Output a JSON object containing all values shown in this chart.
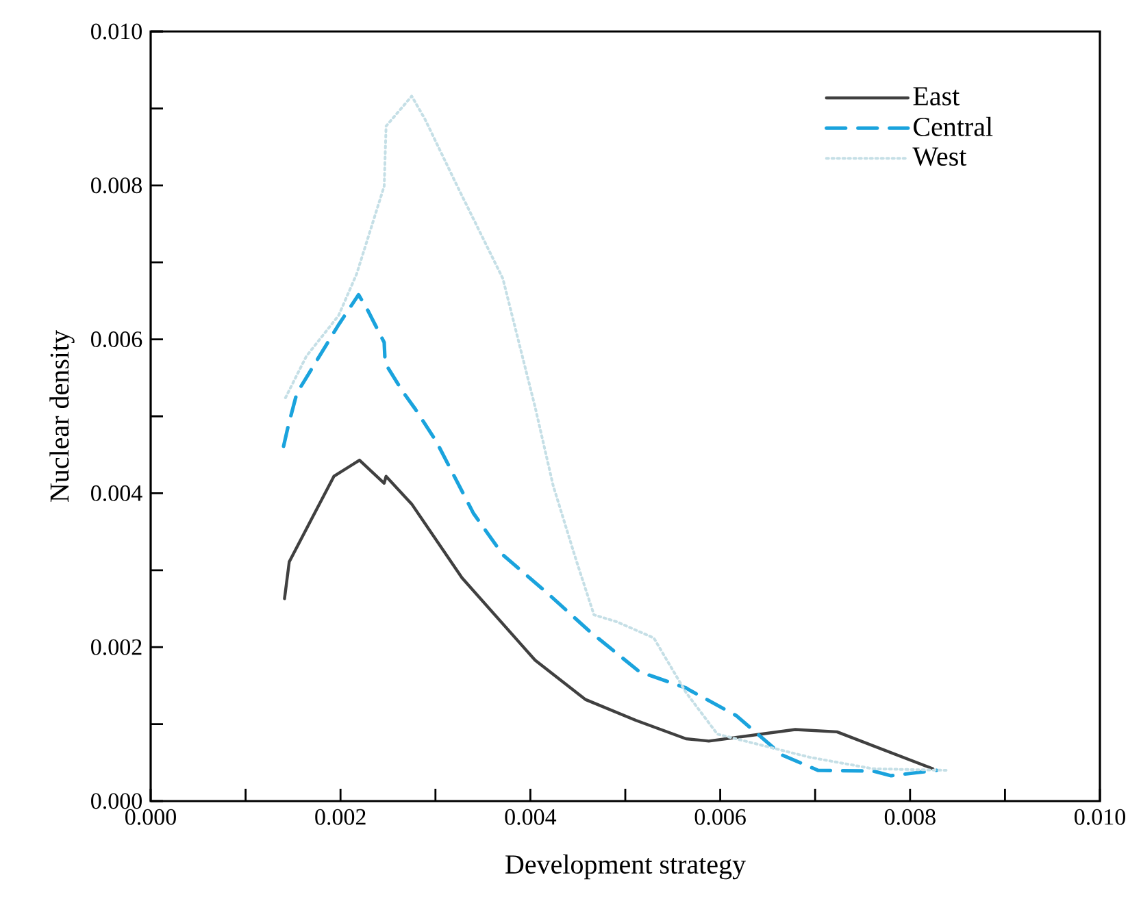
{
  "chart_data": {
    "type": "line",
    "xlabel": "Development strategy",
    "ylabel": "Nuclear density",
    "xlim": [
      0,
      0.01
    ],
    "ylim": [
      0,
      0.01
    ],
    "xticks": [
      {
        "value": 0,
        "label": "0.000"
      },
      {
        "value": 0.001,
        "label": null
      },
      0.002,
      {
        "value": 0.003,
        "label": null
      },
      0.004,
      {
        "value": 0.005,
        "label": null
      },
      0.006,
      {
        "value": 0.007,
        "label": null
      },
      0.008,
      {
        "value": 0.009,
        "label": null
      },
      {
        "value": 0.01,
        "label": "0.010"
      }
    ],
    "yticks": [
      {
        "value": 0,
        "label": "0.000"
      },
      {
        "value": 0.001,
        "label": null
      },
      0.002,
      {
        "value": 0.003,
        "label": null
      },
      0.004,
      {
        "value": 0.005,
        "label": null
      },
      0.006,
      {
        "value": 0.007,
        "label": null
      },
      0.008,
      {
        "value": 0.009,
        "label": null
      },
      {
        "value": 0.01,
        "label": "0.010"
      }
    ],
    "legend": "top right",
    "grid": false,
    "marker": "none",
    "series": [
      {
        "name": "East",
        "color": "#404040",
        "line_style": "solid",
        "x": [
          0.00141,
          0.00146,
          0.00193,
          0.0022,
          0.00246,
          0.00248,
          0.00275,
          0.00328,
          0.00405,
          0.00458,
          0.00511,
          0.00564,
          0.00588,
          0.00679,
          0.00723,
          0.00824
        ],
        "values": [
          0.00263,
          0.00311,
          0.00422,
          0.00443,
          0.00413,
          0.00422,
          0.00386,
          0.0029,
          0.00183,
          0.00132,
          0.00105,
          0.00081,
          0.00078,
          0.00093,
          0.0009,
          0.00042
        ]
      },
      {
        "name": "Central",
        "color": "#1aa3dd",
        "line_style": "dashed",
        "x": [
          0.0014,
          0.00145,
          0.00154,
          0.00198,
          0.00219,
          0.00229,
          0.00246,
          0.00247,
          0.00265,
          0.00279,
          0.00301,
          0.0034,
          0.00371,
          0.00419,
          0.00462,
          0.00515,
          0.00564,
          0.00568,
          0.00617,
          0.00665,
          0.00703,
          0.00761,
          0.0078,
          0.00828
        ],
        "values": [
          0.00461,
          0.00488,
          0.0053,
          0.00619,
          0.00658,
          0.00637,
          0.00596,
          0.00569,
          0.00533,
          0.00509,
          0.00467,
          0.00374,
          0.0032,
          0.00269,
          0.00221,
          0.00168,
          0.00147,
          0.00144,
          0.00111,
          0.0006,
          0.0004,
          0.00039,
          0.00033,
          0.0004
        ]
      },
      {
        "name": "West",
        "color": "#c5dfe6",
        "line_style": "dotted",
        "x": [
          0.00142,
          0.00164,
          0.00198,
          0.00217,
          0.00246,
          0.00248,
          0.00275,
          0.00289,
          0.00323,
          0.00371,
          0.00405,
          0.00424,
          0.00448,
          0.00467,
          0.00491,
          0.0053,
          0.00564,
          0.00597,
          0.00694,
          0.00761,
          0.00838
        ],
        "values": [
          0.00524,
          0.00578,
          0.00631,
          0.00685,
          0.00799,
          0.00877,
          0.00916,
          0.00886,
          0.00799,
          0.00679,
          0.00512,
          0.0041,
          0.00314,
          0.00242,
          0.00233,
          0.00212,
          0.00141,
          0.00087,
          0.00057,
          0.00042,
          0.0004
        ]
      }
    ]
  }
}
